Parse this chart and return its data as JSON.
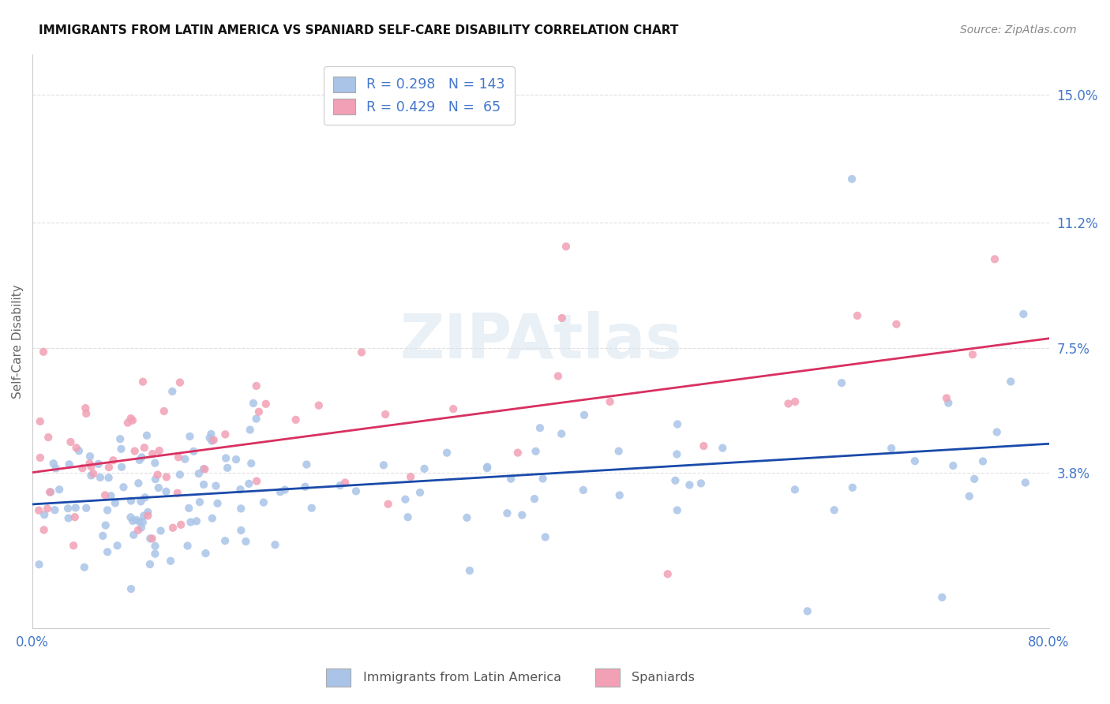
{
  "title": "IMMIGRANTS FROM LATIN AMERICA VS SPANIARD SELF-CARE DISABILITY CORRELATION CHART",
  "source": "Source: ZipAtlas.com",
  "ylabel": "Self-Care Disability",
  "xlim": [
    0.0,
    0.8
  ],
  "ylim": [
    -0.008,
    0.162
  ],
  "blue_R": 0.298,
  "blue_N": 143,
  "pink_R": 0.429,
  "pink_N": 65,
  "blue_color": "#aac4e8",
  "pink_color": "#f2a0b5",
  "blue_line_color": "#1a4aaa",
  "pink_line_color": "#d93060",
  "legend_label_blue": "Immigrants from Latin America",
  "legend_label_pink": "Spaniards",
  "watermark": "ZIPAtlas",
  "background_color": "#ffffff",
  "grid_color": "#e0e0e0",
  "title_color": "#111111",
  "axis_label_color": "#4477cc",
  "source_color": "#888888"
}
